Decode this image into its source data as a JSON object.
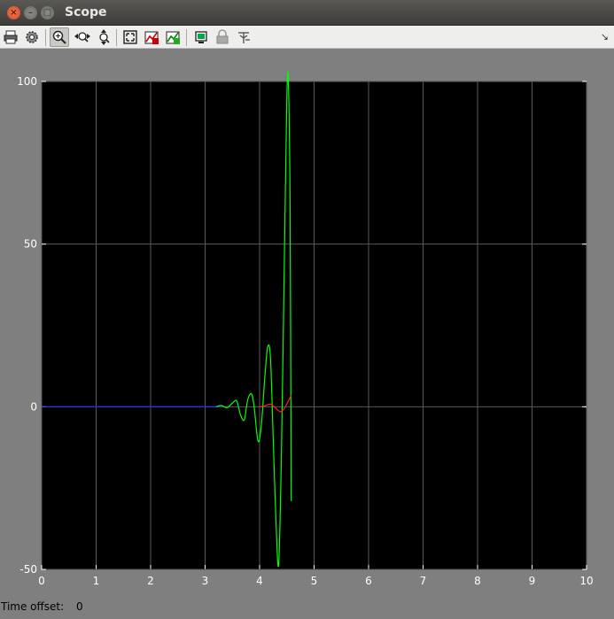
{
  "window": {
    "title": "Scope"
  },
  "toolbar": {
    "buttons": [
      {
        "name": "print-icon"
      },
      {
        "name": "settings-icon"
      },
      {
        "name": "zoom-in-icon"
      },
      {
        "name": "zoom-x-icon"
      },
      {
        "name": "zoom-y-icon"
      },
      {
        "name": "autoscale-icon"
      },
      {
        "name": "save-axes-icon"
      },
      {
        "name": "restore-axes-icon"
      },
      {
        "name": "floating-scope-icon"
      },
      {
        "name": "lock-icon"
      },
      {
        "name": "signal-selection-icon"
      }
    ]
  },
  "status": {
    "label": "Time offset:",
    "value": "0"
  },
  "colors": {
    "plot_bg": "#000000",
    "frame_bg": "#808080",
    "series_green": "#00ff00",
    "series_red": "#ff2020",
    "series_blue": "#3030ff",
    "grid": "#5a5a5a",
    "axis_text": "#ffffff"
  },
  "chart_data": {
    "type": "line",
    "xlim": [
      0,
      10
    ],
    "ylim": [
      -50,
      100
    ],
    "xticks": [
      "0",
      "1",
      "2",
      "3",
      "4",
      "5",
      "6",
      "7",
      "8",
      "9",
      "10"
    ],
    "yticks": [
      "100",
      "50",
      "0",
      "-50"
    ],
    "grid": true,
    "series": [
      {
        "color": "#3030ff",
        "x": [
          0,
          3.0,
          3.2
        ],
        "y": [
          0,
          0,
          0
        ]
      },
      {
        "color": "#00ff00",
        "x": [
          3.2,
          3.3,
          3.4,
          3.5,
          3.58,
          3.65,
          3.72,
          3.78,
          3.85,
          3.9,
          3.97,
          4.03,
          4.1,
          4.15,
          4.2,
          4.25,
          4.3,
          4.35,
          4.4,
          4.45,
          4.5,
          4.53,
          4.56,
          4.58
        ],
        "y": [
          0,
          0.4,
          -0.3,
          1.1,
          1.8,
          -2.5,
          -4.0,
          2.0,
          4.0,
          0,
          -10.5,
          -6,
          10,
          18.5,
          15,
          -10,
          -35,
          -48.5,
          -15,
          40,
          95,
          99,
          60,
          -29
        ]
      },
      {
        "color": "#ff2020",
        "x": [
          4.0,
          4.1,
          4.2,
          4.3,
          4.38,
          4.45,
          4.52,
          4.58
        ],
        "y": [
          0,
          0.3,
          0.8,
          -0.5,
          -1.5,
          -0.6,
          1.5,
          3.5
        ]
      }
    ]
  }
}
